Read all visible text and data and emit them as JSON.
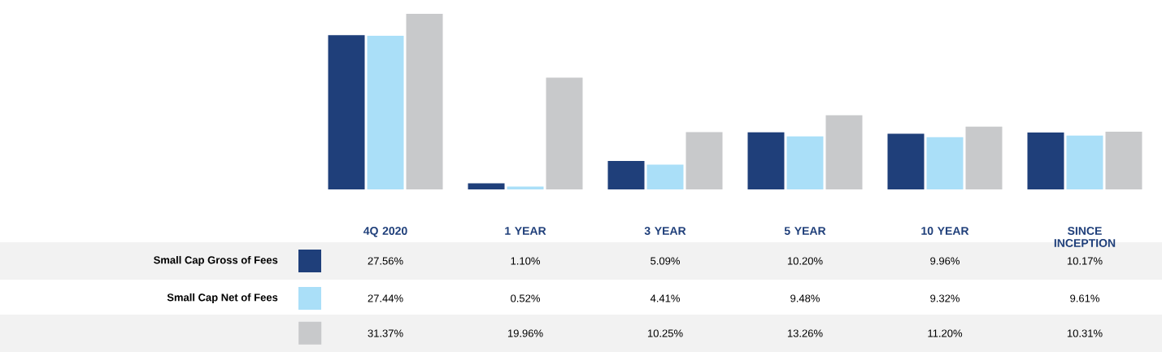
{
  "chart_data": {
    "type": "bar",
    "legend": "bottom left",
    "categories": [
      "4Q 2020",
      "1 YEAR",
      "3 YEAR",
      "5 YEAR",
      "10 YEAR",
      "SINCE INCEPTION"
    ],
    "series": [
      {
        "name": "Small Cap Gross of Fees",
        "color": "#1f3f7a",
        "values": [
          27.56,
          1.1,
          5.09,
          10.2,
          9.96,
          10.17
        ],
        "value_labels": [
          "27.56%",
          "1.10%",
          "5.09%",
          "10.20%",
          "9.96%",
          "10.17%"
        ]
      },
      {
        "name": "Small Cap Net of Fees",
        "color": "#aadff8",
        "values": [
          27.44,
          0.52,
          4.41,
          9.48,
          9.32,
          9.61
        ],
        "value_labels": [
          "27.44%",
          "0.52%",
          "4.41%",
          "9.48%",
          "9.32%",
          "9.61%"
        ]
      },
      {
        "color": "#c8c9cb",
        "values": [
          31.37,
          19.96,
          10.25,
          13.26,
          11.2,
          10.31
        ],
        "value_labels": [
          "31.37%",
          "19.96%",
          "10.25%",
          "13.26%",
          "11.20%",
          "10.31%"
        ]
      }
    ]
  }
}
